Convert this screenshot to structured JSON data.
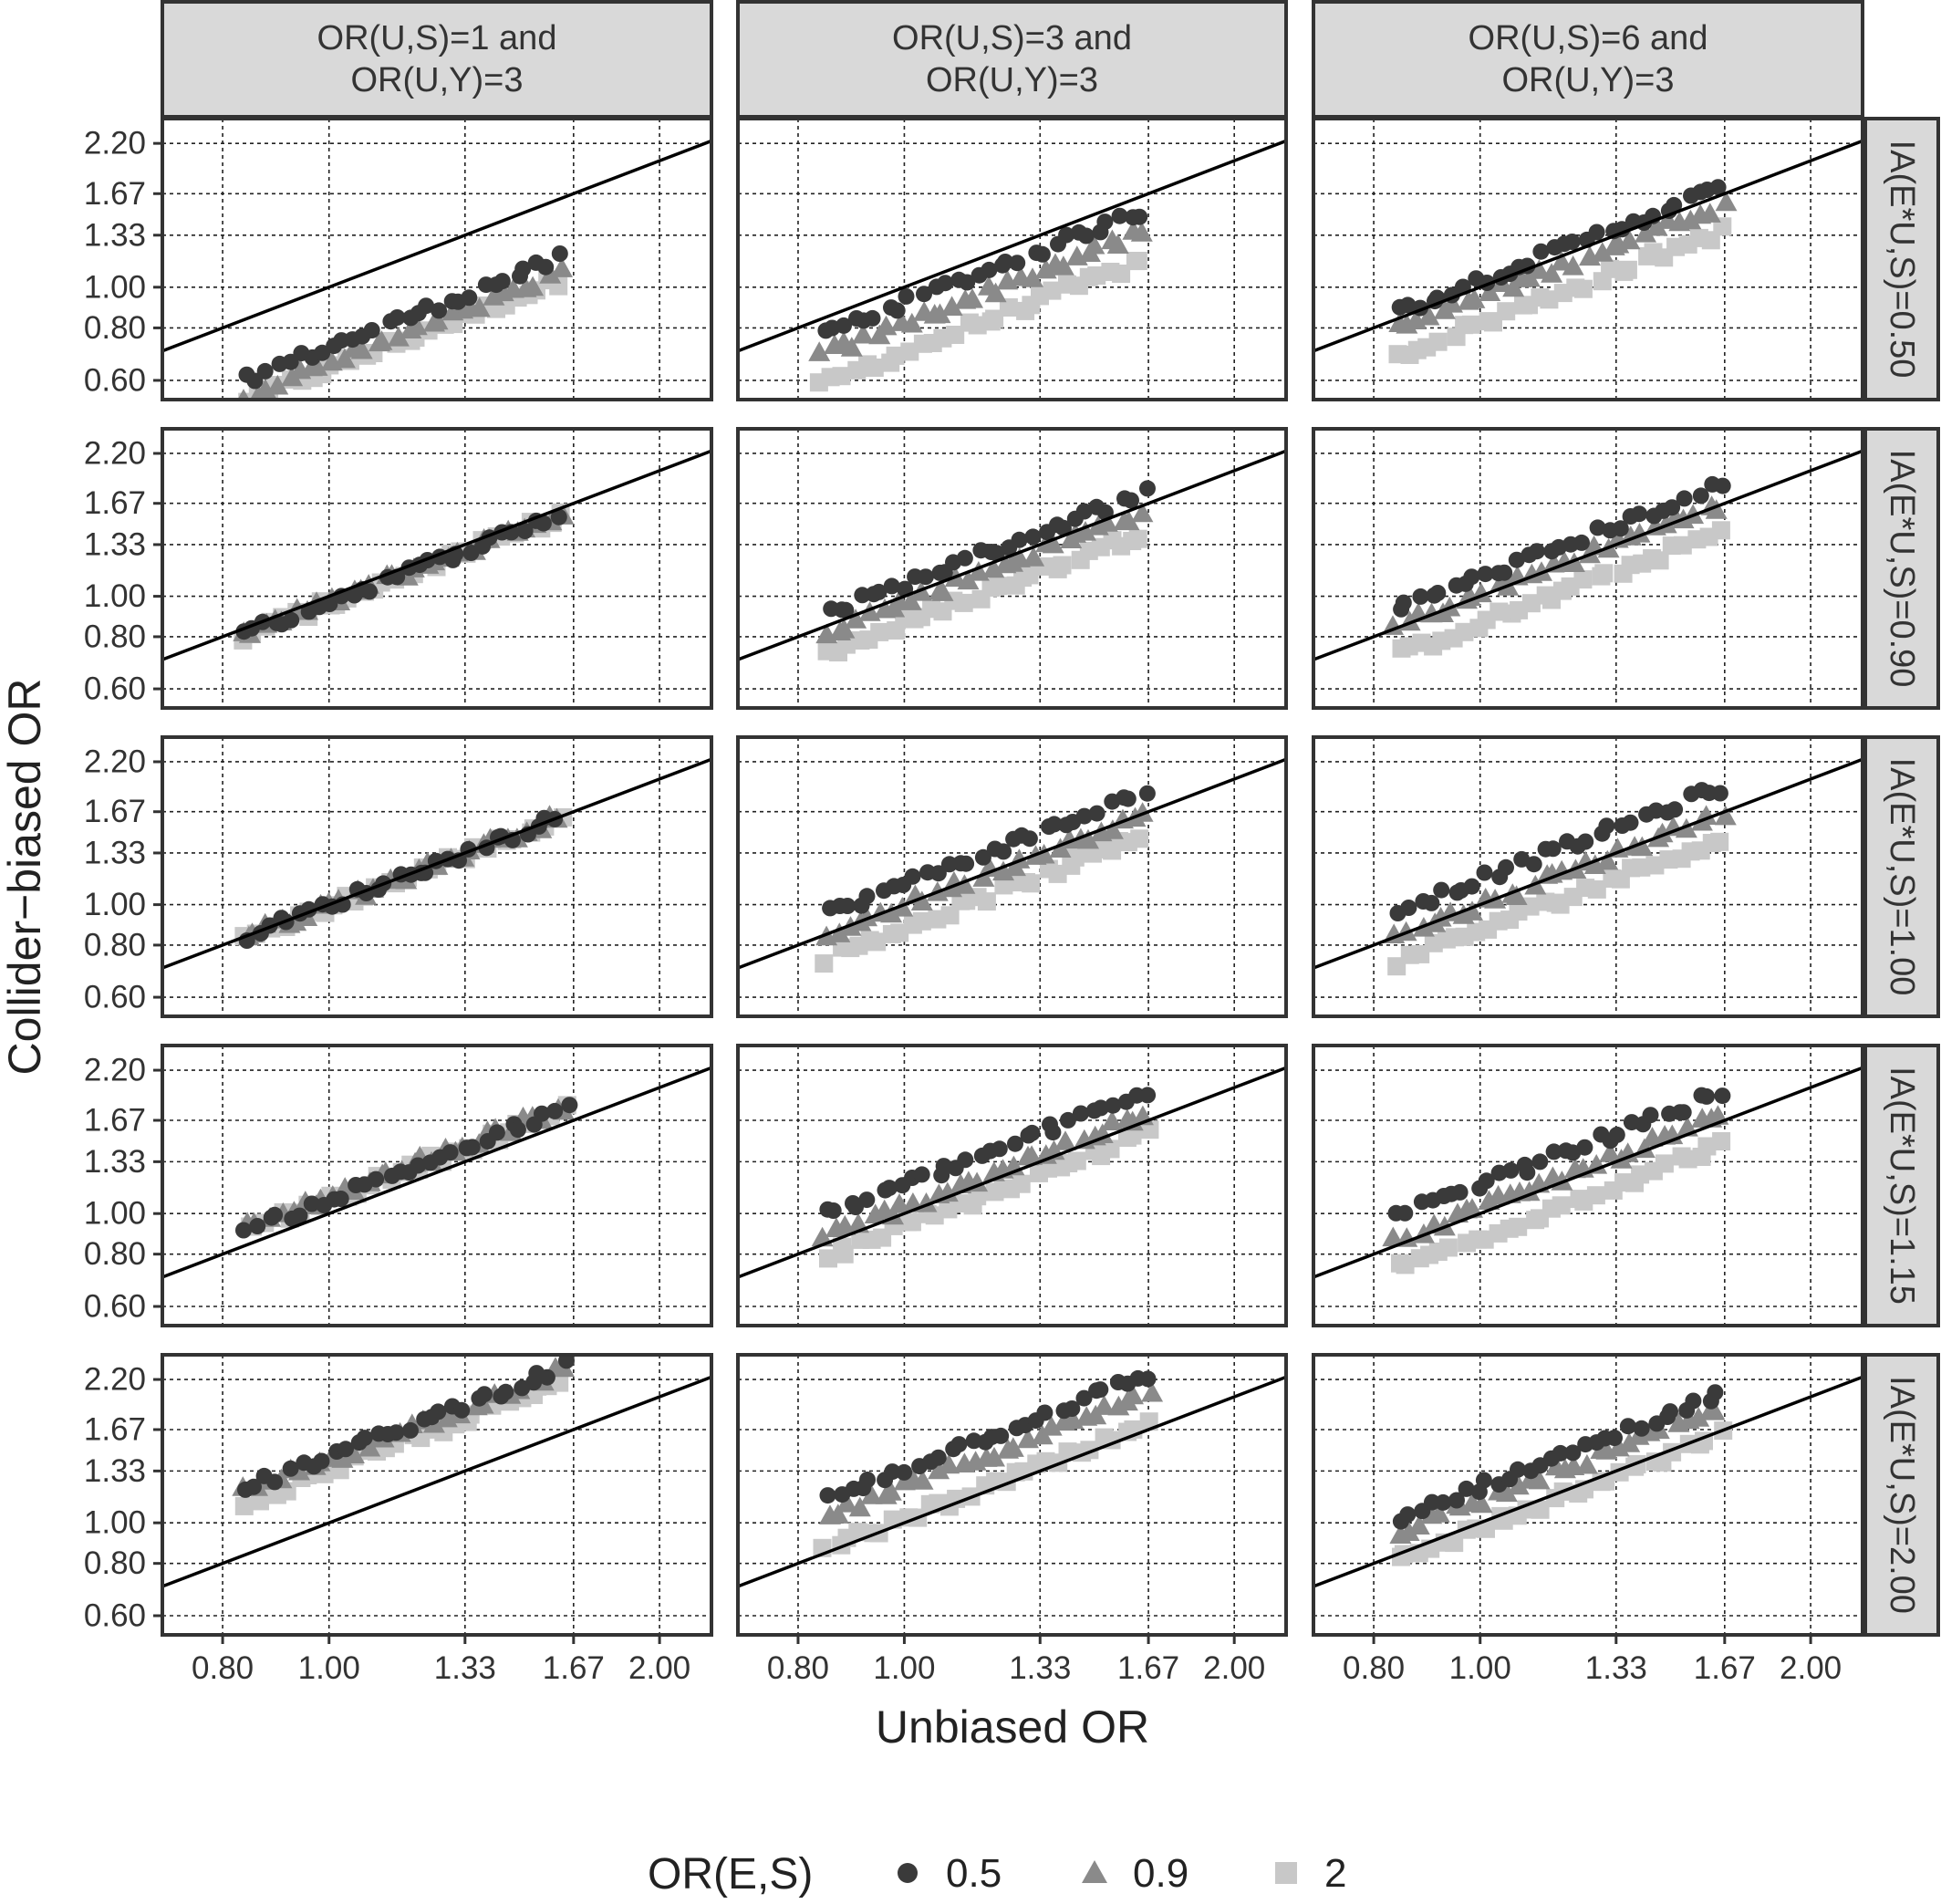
{
  "chart_data": {
    "type": "scatter",
    "xlabel": "Unbiased OR",
    "ylabel": "Collider−biased OR",
    "scale": "log",
    "xlim": [
      0.705,
      2.23
    ],
    "ylim": [
      0.54,
      2.52
    ],
    "x_ticks": [
      0.8,
      1.0,
      1.33,
      1.67,
      2.0
    ],
    "x_tick_labels": [
      "0.80",
      "1.00",
      "1.33",
      "1.67",
      "2.00"
    ],
    "y_ticks": [
      0.6,
      0.8,
      1.0,
      1.33,
      1.67,
      2.2
    ],
    "y_tick_labels": [
      "0.60",
      "0.80",
      "1.00",
      "1.33",
      "1.67",
      "2.20"
    ],
    "reference_line": "identity (y = x)",
    "columns": [
      {
        "line1": "OR(U,S)=1 and",
        "line2": "OR(U,Y)=3"
      },
      {
        "line1": "OR(U,S)=3 and",
        "line2": "OR(U,Y)=3"
      },
      {
        "line1": "OR(U,S)=6 and",
        "line2": "OR(U,Y)=3"
      }
    ],
    "rows": [
      "IA(E*U,S)=0.50",
      "IA(E*U,S)=0.90",
      "IA(E*U,S)=1.00",
      "IA(E*U,S)=1.15",
      "IA(E*U,S)=2.00"
    ],
    "legend": {
      "title": "OR(E,S)",
      "position": "bottom",
      "entries": [
        {
          "label": "0.5",
          "shape": "circle",
          "color": "#3a3a3a"
        },
        {
          "label": "0.9",
          "shape": "triangle",
          "color": "#8a8a8a"
        },
        {
          "label": "2",
          "shape": "square",
          "color": "#c8c8c8"
        }
      ]
    },
    "panels": [
      {
        "row": 0,
        "col": 0,
        "x_range": [
          0.84,
          1.62
        ],
        "ratio": {
          "0.5": 0.72,
          "0.9": 0.66,
          "2": 0.64
        }
      },
      {
        "row": 0,
        "col": 1,
        "x_range": [
          0.84,
          1.65
        ],
        "ratio": {
          "0.5": 0.92,
          "0.9": 0.82,
          "2": 0.7
        }
      },
      {
        "row": 0,
        "col": 2,
        "x_range": [
          0.84,
          1.66
        ],
        "ratio": {
          "0.5": 1.04,
          "0.9": 0.95,
          "2": 0.82
        }
      },
      {
        "row": 1,
        "col": 0,
        "x_range": [
          0.83,
          1.62
        ],
        "ratio": {
          "0.5": 0.97,
          "0.9": 0.97,
          "2": 0.96
        }
      },
      {
        "row": 1,
        "col": 1,
        "x_range": [
          0.85,
          1.65
        ],
        "ratio": {
          "0.5": 1.07,
          "0.9": 0.97,
          "2": 0.86
        }
      },
      {
        "row": 1,
        "col": 2,
        "x_range": [
          0.84,
          1.65
        ],
        "ratio": {
          "0.5": 1.11,
          "0.9": 1.01,
          "2": 0.86
        }
      },
      {
        "row": 2,
        "col": 0,
        "x_range": [
          0.84,
          1.62
        ],
        "ratio": {
          "0.5": 1.0,
          "0.9": 1.0,
          "2": 0.99
        }
      },
      {
        "row": 2,
        "col": 1,
        "x_range": [
          0.85,
          1.65
        ],
        "ratio": {
          "0.5": 1.12,
          "0.9": 1.0,
          "2": 0.88
        }
      },
      {
        "row": 2,
        "col": 2,
        "x_range": [
          0.84,
          1.66
        ],
        "ratio": {
          "0.5": 1.15,
          "0.9": 1.0,
          "2": 0.87
        }
      },
      {
        "row": 3,
        "col": 0,
        "x_range": [
          0.84,
          1.64
        ],
        "ratio": {
          "0.5": 1.08,
          "0.9": 1.1,
          "2": 1.08
        }
      },
      {
        "row": 3,
        "col": 1,
        "x_range": [
          0.85,
          1.66
        ],
        "ratio": {
          "0.5": 1.17,
          "0.9": 1.04,
          "2": 0.93
        }
      },
      {
        "row": 3,
        "col": 2,
        "x_range": [
          0.84,
          1.66
        ],
        "ratio": {
          "0.5": 1.17,
          "0.9": 1.03,
          "2": 0.88
        }
      },
      {
        "row": 4,
        "col": 0,
        "x_range": [
          0.84,
          1.63
        ],
        "ratio": {
          "0.5": 1.44,
          "0.9": 1.42,
          "2": 1.33
        }
      },
      {
        "row": 4,
        "col": 1,
        "x_range": [
          0.85,
          1.67
        ],
        "ratio": {
          "0.5": 1.35,
          "0.9": 1.22,
          "2": 1.02
        }
      },
      {
        "row": 4,
        "col": 2,
        "x_range": [
          0.84,
          1.65
        ],
        "ratio": {
          "0.5": 1.22,
          "0.9": 1.13,
          "2": 0.97
        }
      }
    ]
  }
}
